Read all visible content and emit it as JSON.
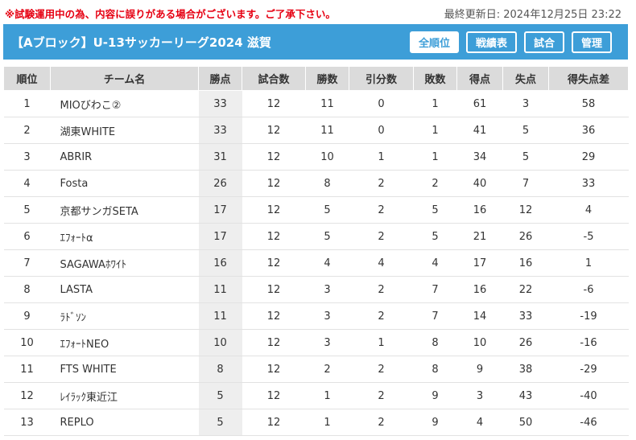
{
  "notice": "※試験運用中の為、内容に誤りがある場合がございます。ご了承下さい。",
  "updated": "最終更新日: 2024年12月25日 23:22",
  "league_title": "【Aブロック】U-13サッカーリーグ2024 滋賀",
  "nav": {
    "standings": "全順位",
    "results": "戦績表",
    "matches": "試合",
    "admin": "管理"
  },
  "accent_color": "#3d9ed8",
  "notice_color": "#e60012",
  "table": {
    "headers": [
      "順位",
      "チーム名",
      "勝点",
      "試合数",
      "勝数",
      "引分数",
      "敗数",
      "得点",
      "失点",
      "得失点差"
    ],
    "rows": [
      [
        "1",
        "MIOびわこ②",
        "33",
        "12",
        "11",
        "0",
        "1",
        "61",
        "3",
        "58"
      ],
      [
        "2",
        "湖東WHITE",
        "33",
        "12",
        "11",
        "0",
        "1",
        "41",
        "5",
        "36"
      ],
      [
        "3",
        "ABRIR",
        "31",
        "12",
        "10",
        "1",
        "1",
        "34",
        "5",
        "29"
      ],
      [
        "4",
        "Fosta",
        "26",
        "12",
        "8",
        "2",
        "2",
        "40",
        "7",
        "33"
      ],
      [
        "5",
        "京都サンガSETA",
        "17",
        "12",
        "5",
        "2",
        "5",
        "16",
        "12",
        "4"
      ],
      [
        "6",
        "ｴﾌｫｰﾄα",
        "17",
        "12",
        "5",
        "2",
        "5",
        "21",
        "26",
        "-5"
      ],
      [
        "7",
        "SAGAWAﾎﾜｲﾄ",
        "16",
        "12",
        "4",
        "4",
        "4",
        "17",
        "16",
        "1"
      ],
      [
        "8",
        "LASTA",
        "11",
        "12",
        "3",
        "2",
        "7",
        "16",
        "22",
        "-6"
      ],
      [
        "9",
        "ﾗﾄﾞｿﾝ",
        "11",
        "12",
        "3",
        "2",
        "7",
        "14",
        "33",
        "-19"
      ],
      [
        "10",
        "ｴﾌｫｰﾄNEO",
        "10",
        "12",
        "3",
        "1",
        "8",
        "10",
        "26",
        "-16"
      ],
      [
        "11",
        "FTS WHITE",
        "8",
        "12",
        "2",
        "2",
        "8",
        "9",
        "38",
        "-29"
      ],
      [
        "12",
        "ﾚｲﾗｯｸ東近江",
        "5",
        "12",
        "1",
        "2",
        "9",
        "3",
        "43",
        "-40"
      ],
      [
        "13",
        "REPLO",
        "5",
        "12",
        "1",
        "2",
        "9",
        "4",
        "50",
        "-46"
      ]
    ]
  }
}
